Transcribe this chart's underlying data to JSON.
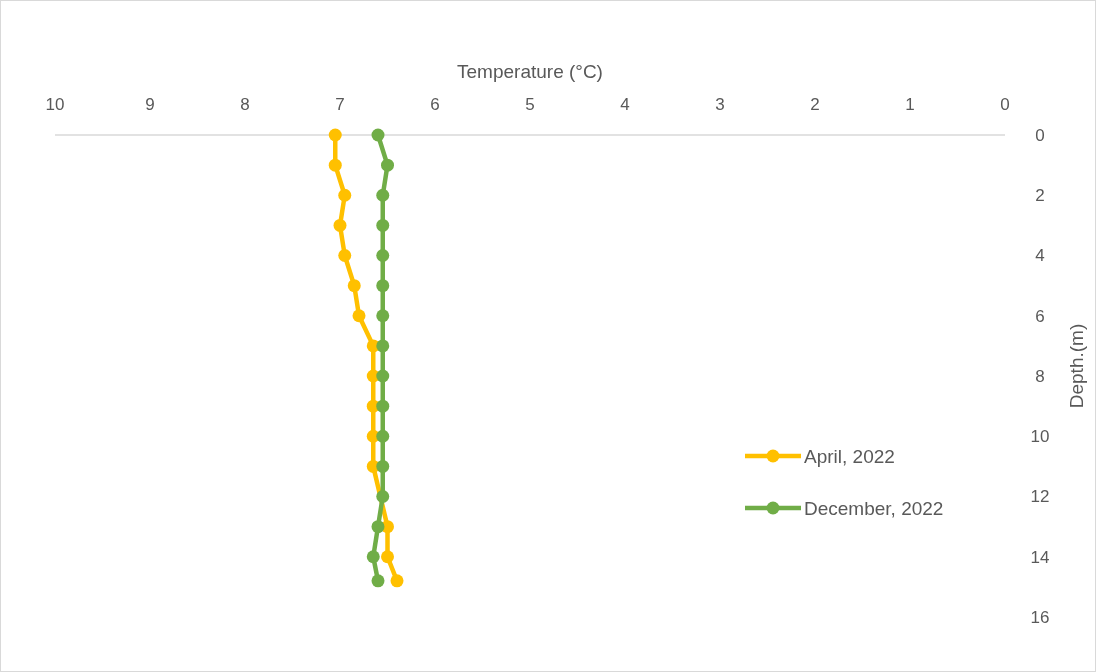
{
  "chart_data": {
    "type": "line",
    "xlabel": "Temperature (°C)",
    "ylabel": "Depth.(m)",
    "xlim": [
      10,
      0
    ],
    "xticks": [
      10,
      9,
      8,
      7,
      6,
      5,
      4,
      3,
      2,
      1,
      0
    ],
    "ylim": [
      16,
      0
    ],
    "yticks": [
      0,
      2,
      4,
      6,
      8,
      10,
      12,
      14,
      16
    ],
    "legend": "right",
    "marker": "circle",
    "line_style": "solid",
    "grid": false,
    "series": [
      {
        "name": "April, 2022",
        "color": "#ffc000",
        "x": [
          7.05,
          7.05,
          6.95,
          7.0,
          6.95,
          6.85,
          6.8,
          6.65,
          6.65,
          6.65,
          6.65,
          6.65,
          6.55,
          6.5,
          6.5,
          6.4
        ],
        "values": [
          0,
          1,
          2,
          3,
          4,
          5,
          6,
          7,
          8,
          9,
          10,
          11,
          null,
          13,
          14,
          14.8
        ]
      },
      {
        "name": "December, 2022",
        "color": "#70ad47",
        "x": [
          6.6,
          6.5,
          6.55,
          6.55,
          6.55,
          6.55,
          6.55,
          6.55,
          6.55,
          6.55,
          6.55,
          6.55,
          6.55,
          6.6,
          6.65,
          6.6
        ],
        "values": [
          0,
          1,
          2,
          3,
          4,
          5,
          6,
          7,
          8,
          9,
          10,
          11,
          12,
          13,
          14,
          14.8
        ]
      }
    ]
  }
}
